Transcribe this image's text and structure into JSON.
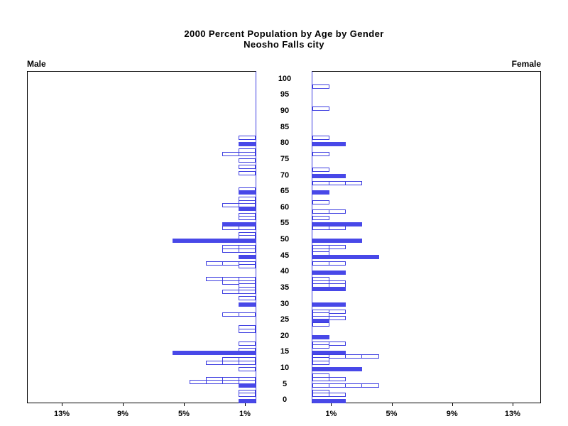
{
  "title": {
    "line1": "2000 Percent Population by Age by Gender",
    "line2": "Neosho Falls city"
  },
  "panels": {
    "male_label": "Male",
    "female_label": "Female"
  },
  "chart_data": {
    "type": "bar",
    "variant": "population-pyramid",
    "title": "2000 Percent Population by Age by Gender - Neosho Falls city",
    "age_axis": {
      "min": 0,
      "max": 100,
      "tick_step": 5,
      "tick_labels": [
        "0",
        "5",
        "10",
        "15",
        "20",
        "25",
        "30",
        "35",
        "40",
        "45",
        "50",
        "55",
        "60",
        "65",
        "70",
        "75",
        "80",
        "85",
        "90",
        "95",
        "100"
      ]
    },
    "pct_axis": {
      "tick_values": [
        1,
        5,
        9,
        13
      ],
      "tick_labels": [
        "1%",
        "5%",
        "9%",
        "13%"
      ],
      "max_percent": 15,
      "percent_per_person_segment": 1.12
    },
    "colors": {
      "bar_fill": "#4848e8",
      "bar_outline": "#3c3ce0",
      "axis": "#000000"
    },
    "male_bars": [
      {
        "age": 82,
        "pct": 1.1,
        "fill": false
      },
      {
        "age": 80,
        "pct": 1.1,
        "fill": true
      },
      {
        "age": 78,
        "pct": 1.1,
        "fill": false
      },
      {
        "age": 77,
        "pct": 2.2,
        "fill": false
      },
      {
        "age": 75,
        "pct": 1.1,
        "fill": false
      },
      {
        "age": 73,
        "pct": 1.1,
        "fill": false
      },
      {
        "age": 71,
        "pct": 1.1,
        "fill": false
      },
      {
        "age": 66,
        "pct": 1.1,
        "fill": false
      },
      {
        "age": 65,
        "pct": 1.1,
        "fill": true
      },
      {
        "age": 63,
        "pct": 1.1,
        "fill": false
      },
      {
        "age": 62,
        "pct": 1.1,
        "fill": false
      },
      {
        "age": 61,
        "pct": 2.2,
        "fill": false
      },
      {
        "age": 60,
        "pct": 1.1,
        "fill": true
      },
      {
        "age": 58,
        "pct": 1.1,
        "fill": false
      },
      {
        "age": 57,
        "pct": 1.1,
        "fill": false
      },
      {
        "age": 55,
        "pct": 2.2,
        "fill": true
      },
      {
        "age": 54,
        "pct": 2.2,
        "fill": false
      },
      {
        "age": 52,
        "pct": 1.1,
        "fill": false
      },
      {
        "age": 51,
        "pct": 1.1,
        "fill": false
      },
      {
        "age": 50,
        "pct": 5.6,
        "fill": true
      },
      {
        "age": 48,
        "pct": 2.2,
        "fill": false
      },
      {
        "age": 47,
        "pct": 2.2,
        "fill": false
      },
      {
        "age": 45,
        "pct": 1.1,
        "fill": true
      },
      {
        "age": 43,
        "pct": 3.4,
        "fill": false
      },
      {
        "age": 42,
        "pct": 1.1,
        "fill": false
      },
      {
        "age": 38,
        "pct": 3.4,
        "fill": false
      },
      {
        "age": 37,
        "pct": 2.2,
        "fill": false
      },
      {
        "age": 36,
        "pct": 1.1,
        "fill": false
      },
      {
        "age": 35,
        "pct": 1.1,
        "fill": false
      },
      {
        "age": 34,
        "pct": 2.2,
        "fill": false
      },
      {
        "age": 32,
        "pct": 1.1,
        "fill": false
      },
      {
        "age": 30,
        "pct": 1.1,
        "fill": true
      },
      {
        "age": 27,
        "pct": 2.2,
        "fill": false
      },
      {
        "age": 23,
        "pct": 1.1,
        "fill": false
      },
      {
        "age": 22,
        "pct": 1.1,
        "fill": false
      },
      {
        "age": 18,
        "pct": 1.1,
        "fill": false
      },
      {
        "age": 16,
        "pct": 1.1,
        "fill": false
      },
      {
        "age": 15,
        "pct": 5.6,
        "fill": true
      },
      {
        "age": 13,
        "pct": 2.2,
        "fill": false
      },
      {
        "age": 12,
        "pct": 3.4,
        "fill": false
      },
      {
        "age": 10,
        "pct": 1.1,
        "fill": false
      },
      {
        "age": 7,
        "pct": 3.4,
        "fill": false
      },
      {
        "age": 6,
        "pct": 4.5,
        "fill": false
      },
      {
        "age": 5,
        "pct": 1.1,
        "fill": true
      },
      {
        "age": 3,
        "pct": 1.1,
        "fill": false
      },
      {
        "age": 2,
        "pct": 1.1,
        "fill": false
      },
      {
        "age": 0,
        "pct": 1.1,
        "fill": true
      }
    ],
    "female_bars": [
      {
        "age": 98,
        "pct": 1.1,
        "fill": false
      },
      {
        "age": 91,
        "pct": 1.1,
        "fill": false
      },
      {
        "age": 82,
        "pct": 1.1,
        "fill": false
      },
      {
        "age": 80,
        "pct": 2.2,
        "fill": true
      },
      {
        "age": 77,
        "pct": 1.1,
        "fill": false
      },
      {
        "age": 72,
        "pct": 1.1,
        "fill": false
      },
      {
        "age": 70,
        "pct": 2.2,
        "fill": true
      },
      {
        "age": 68,
        "pct": 3.4,
        "fill": false
      },
      {
        "age": 65,
        "pct": 1.1,
        "fill": true
      },
      {
        "age": 62,
        "pct": 1.1,
        "fill": false
      },
      {
        "age": 59,
        "pct": 2.2,
        "fill": false
      },
      {
        "age": 57,
        "pct": 1.1,
        "fill": false
      },
      {
        "age": 55,
        "pct": 3.4,
        "fill": true
      },
      {
        "age": 54,
        "pct": 2.2,
        "fill": false
      },
      {
        "age": 50,
        "pct": 3.4,
        "fill": true
      },
      {
        "age": 48,
        "pct": 2.2,
        "fill": false
      },
      {
        "age": 47,
        "pct": 1.1,
        "fill": false
      },
      {
        "age": 46,
        "pct": 1.1,
        "fill": false
      },
      {
        "age": 45,
        "pct": 4.5,
        "fill": true
      },
      {
        "age": 43,
        "pct": 2.2,
        "fill": false
      },
      {
        "age": 40,
        "pct": 2.2,
        "fill": true
      },
      {
        "age": 38,
        "pct": 1.1,
        "fill": false
      },
      {
        "age": 37,
        "pct": 2.2,
        "fill": false
      },
      {
        "age": 36,
        "pct": 2.2,
        "fill": false
      },
      {
        "age": 35,
        "pct": 2.2,
        "fill": true
      },
      {
        "age": 30,
        "pct": 2.2,
        "fill": true
      },
      {
        "age": 28,
        "pct": 2.2,
        "fill": false
      },
      {
        "age": 27,
        "pct": 1.1,
        "fill": false
      },
      {
        "age": 26,
        "pct": 2.2,
        "fill": false
      },
      {
        "age": 25,
        "pct": 1.1,
        "fill": true
      },
      {
        "age": 24,
        "pct": 1.1,
        "fill": false
      },
      {
        "age": 20,
        "pct": 1.1,
        "fill": true
      },
      {
        "age": 18,
        "pct": 2.2,
        "fill": false
      },
      {
        "age": 17,
        "pct": 1.1,
        "fill": false
      },
      {
        "age": 15,
        "pct": 2.2,
        "fill": true
      },
      {
        "age": 14,
        "pct": 4.5,
        "fill": false
      },
      {
        "age": 13,
        "pct": 1.1,
        "fill": false
      },
      {
        "age": 12,
        "pct": 1.1,
        "fill": false
      },
      {
        "age": 10,
        "pct": 3.4,
        "fill": true
      },
      {
        "age": 8,
        "pct": 1.1,
        "fill": false
      },
      {
        "age": 7,
        "pct": 2.2,
        "fill": false
      },
      {
        "age": 5,
        "pct": 4.5,
        "fill": false
      },
      {
        "age": 3,
        "pct": 1.1,
        "fill": false
      },
      {
        "age": 2,
        "pct": 2.2,
        "fill": false
      },
      {
        "age": 0,
        "pct": 2.2,
        "fill": true
      }
    ]
  }
}
